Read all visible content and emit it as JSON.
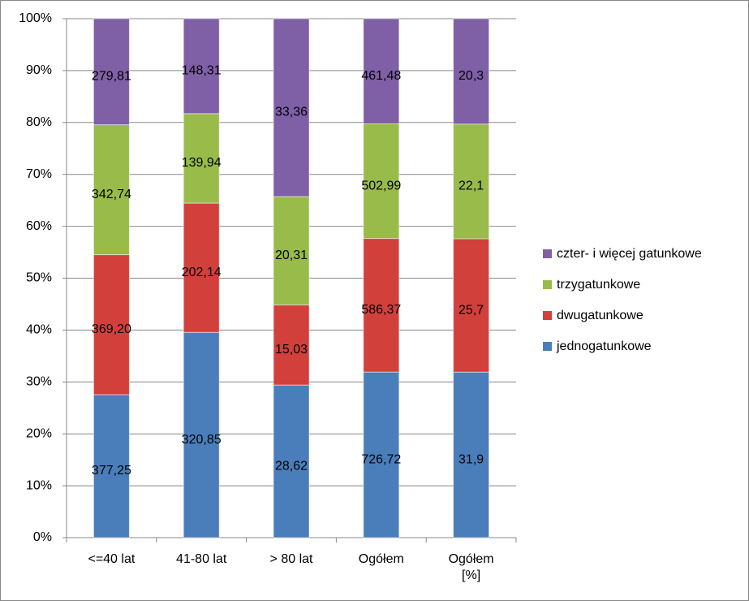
{
  "chart_data": {
    "type": "bar",
    "stacking": "percent",
    "categories": [
      "<=40 lat",
      "41-80 lat",
      "> 80 lat",
      "Ogółem",
      "Ogółem [%]"
    ],
    "series": [
      {
        "name": "jednogatunkowe",
        "color": "#4a7ebb",
        "values": [
          377.25,
          320.85,
          28.62,
          726.72,
          31.9
        ],
        "value_labels": [
          "377,25",
          "320,85",
          "28,62",
          "726,72",
          "31,9"
        ]
      },
      {
        "name": "dwugatunkowe",
        "color": "#d2403c",
        "values": [
          369.2,
          202.14,
          15.03,
          586.37,
          25.7
        ],
        "value_labels": [
          "369,20",
          "202,14",
          "15,03",
          "586,37",
          "25,7"
        ]
      },
      {
        "name": "trzygatunkowe",
        "color": "#98bb4a",
        "values": [
          342.74,
          139.94,
          20.31,
          502.99,
          22.1
        ],
        "value_labels": [
          "342,74",
          "139,94",
          "20,31",
          "502,99",
          "22,1"
        ]
      },
      {
        "name": "czter- i więcej gatunkowe",
        "color": "#7f5fa6",
        "values": [
          279.81,
          148.31,
          33.36,
          461.48,
          20.3
        ],
        "value_labels": [
          "279,81",
          "148,31",
          "33,36",
          "461,48",
          "20,3"
        ]
      }
    ],
    "ylim": [
      0,
      100
    ],
    "yticks": [
      {
        "value": 0,
        "label": "0%"
      },
      {
        "value": 10,
        "label": "10%"
      },
      {
        "value": 20,
        "label": "20%"
      },
      {
        "value": 30,
        "label": "30%"
      },
      {
        "value": 40,
        "label": "40%"
      },
      {
        "value": 50,
        "label": "50%"
      },
      {
        "value": 60,
        "label": "60%"
      },
      {
        "value": 70,
        "label": "70%"
      },
      {
        "value": 80,
        "label": "80%"
      },
      {
        "value": 90,
        "label": "90%"
      },
      {
        "value": 100,
        "label": "100%"
      }
    ],
    "grid": true,
    "legend": "right"
  }
}
